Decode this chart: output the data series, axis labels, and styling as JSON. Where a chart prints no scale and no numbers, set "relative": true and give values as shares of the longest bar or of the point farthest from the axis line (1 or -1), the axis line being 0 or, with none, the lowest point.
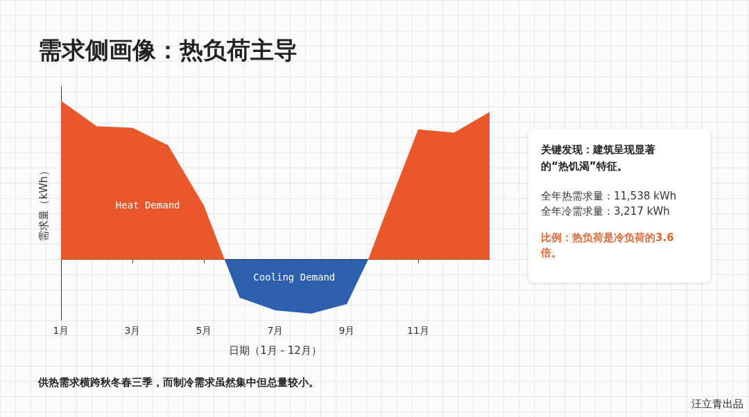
{
  "chart_data": [
    {
      "type": "area",
      "title": "需求侧画像：热负荷主导",
      "xlabel": "日期（1月 - 12月）",
      "ylabel": "需求量（kWh）",
      "relative": true,
      "xlim": [
        1,
        13
      ],
      "xticks": [
        {
          "value": 1,
          "label": "1月"
        },
        {
          "value": 3,
          "label": "3月"
        },
        {
          "value": 5,
          "label": "5月"
        },
        {
          "value": 7,
          "label": "7月"
        },
        {
          "value": 9,
          "label": "9月"
        },
        {
          "value": 11,
          "label": "11月"
        }
      ],
      "series": [
        {
          "name": "Heat Demand",
          "color": "#e8582a",
          "x": [
            1,
            2,
            3,
            4,
            5,
            5.58
          ],
          "values": [
            1.0,
            0.84,
            0.83,
            0.72,
            0.34,
            0
          ]
        },
        {
          "color": "#e8582a",
          "x": [
            9.6,
            10,
            11,
            12,
            13
          ],
          "values": [
            0,
            0.24,
            0.82,
            0.8,
            0.93
          ]
        },
        {
          "name": "Cooling Demand",
          "color": "#2c5fad",
          "x": [
            5.58,
            6,
            7,
            8,
            9,
            9.6
          ],
          "values": [
            0,
            -0.24,
            -0.32,
            -0.34,
            -0.28,
            0
          ]
        }
      ],
      "annotations": [
        "供热需求横跨秋冬春三季，而制冷需求虽然集中但总量较小。",
        "汪立青出品"
      ]
    },
    {
      "type": "other",
      "title": "关键发现：建筑呈现显著的“热饥渴”特征。",
      "annotations": [
        "全年热需求量：11,538 kWh",
        "全年冷需求量：3,217 kWh",
        "比例：热负荷是冷负荷的3.6 倍。"
      ]
    }
  ]
}
